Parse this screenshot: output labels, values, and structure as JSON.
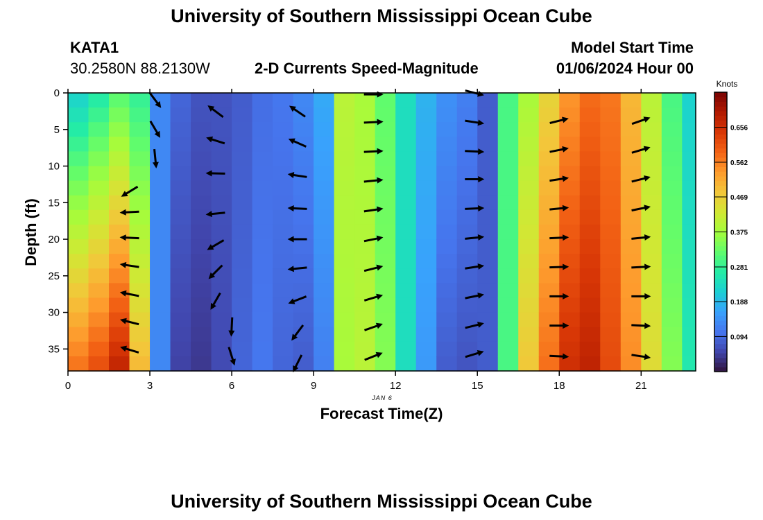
{
  "header": {
    "title": "University of Southern Mississippi Ocean Cube",
    "station": "KATA1",
    "coords": "30.2580N  88.2130W",
    "subtitle": "2-D Currents Speed-Magnitude",
    "model_label": "Model Start Time",
    "model_time": "01/06/2024 Hour 00"
  },
  "footer": {
    "title": "University of Southern Mississippi Ocean Cube"
  },
  "colorbar": {
    "unit": "Knots",
    "ticks": [
      "0.656",
      "0.562",
      "0.469",
      "0.375",
      "0.281",
      "0.188",
      "0.094"
    ],
    "tick_values": [
      0.656,
      0.562,
      0.469,
      0.375,
      0.281,
      0.188,
      0.094
    ],
    "range": [
      0.0,
      0.75
    ],
    "colormap": [
      "#30123b",
      "#4145ab",
      "#4675ed",
      "#39a2fc",
      "#1bcfd4",
      "#24eca6",
      "#61fc6c",
      "#a4fc3b",
      "#d1e834",
      "#f3c63a",
      "#fe9b2d",
      "#f36315",
      "#d93806",
      "#b11901",
      "#7a0403"
    ]
  },
  "chart_data": {
    "type": "heatmap",
    "title": "2-D Currents Speed-Magnitude",
    "xlabel": "Forecast Time(Z)",
    "ylabel": "Depth (ft)",
    "date_label": "JAN 6",
    "x_ticks": [
      0,
      3,
      6,
      9,
      12,
      15,
      18,
      21
    ],
    "y_ticks": [
      0,
      5,
      10,
      15,
      20,
      25,
      30,
      35
    ],
    "xlim": [
      0,
      23
    ],
    "ylim": [
      0,
      38
    ],
    "time_steps": [
      0,
      0.75,
      1.5,
      2.25,
      3,
      3.75,
      4.5,
      5.25,
      6,
      6.75,
      7.5,
      8.25,
      9,
      9.75,
      10.5,
      11.25,
      12,
      12.75,
      13.5,
      14.25,
      15,
      15.75,
      16.5,
      17.25,
      18,
      18.75,
      19.5,
      20.25,
      21,
      21.75,
      22.5
    ],
    "surface_speed": [
      0.22,
      0.26,
      0.31,
      0.28,
      0.13,
      0.09,
      0.07,
      0.07,
      0.08,
      0.1,
      0.11,
      0.13,
      0.17,
      0.4,
      0.38,
      0.32,
      0.24,
      0.18,
      0.14,
      0.12,
      0.08,
      0.3,
      0.38,
      0.46,
      0.54,
      0.58,
      0.57,
      0.5,
      0.4,
      0.3,
      0.22
    ],
    "bottom_speed": [
      0.58,
      0.62,
      0.68,
      0.5,
      0.13,
      0.05,
      0.04,
      0.06,
      0.09,
      0.11,
      0.09,
      0.08,
      0.12,
      0.38,
      0.4,
      0.35,
      0.24,
      0.15,
      0.08,
      0.07,
      0.08,
      0.3,
      0.48,
      0.58,
      0.66,
      0.68,
      0.62,
      0.55,
      0.45,
      0.35,
      0.26
    ],
    "vectors": [
      {
        "time": 2.25,
        "depth": 13.5,
        "u": -0.9,
        "v": -0.55
      },
      {
        "time": 2.25,
        "depth": 16.3,
        "u": -1,
        "v": -0.05
      },
      {
        "time": 2.25,
        "depth": 19.8,
        "u": -1,
        "v": 0.05
      },
      {
        "time": 2.25,
        "depth": 23.6,
        "u": -1,
        "v": 0.15
      },
      {
        "time": 2.25,
        "depth": 27.5,
        "u": -1,
        "v": 0.2
      },
      {
        "time": 2.25,
        "depth": 31.3,
        "u": -1,
        "v": 0.25
      },
      {
        "time": 2.25,
        "depth": 35.1,
        "u": -1,
        "v": 0.3
      },
      {
        "time": 3.2,
        "depth": 1.0,
        "u": 0.6,
        "v": -0.8
      },
      {
        "time": 3.2,
        "depth": 5.0,
        "u": 0.5,
        "v": -0.85
      },
      {
        "time": 3.2,
        "depth": 9.0,
        "u": 0.1,
        "v": -1
      },
      {
        "time": 5.4,
        "depth": 2.5,
        "u": -0.8,
        "v": 0.6
      },
      {
        "time": 5.4,
        "depth": 6.5,
        "u": -0.95,
        "v": 0.3
      },
      {
        "time": 5.4,
        "depth": 11.0,
        "u": -1,
        "v": 0.02
      },
      {
        "time": 5.4,
        "depth": 16.5,
        "u": -1,
        "v": -0.1
      },
      {
        "time": 5.4,
        "depth": 20.8,
        "u": -0.85,
        "v": -0.5
      },
      {
        "time": 5.4,
        "depth": 24.5,
        "u": -0.7,
        "v": -0.7
      },
      {
        "time": 5.4,
        "depth": 28.5,
        "u": -0.5,
        "v": -0.87
      },
      {
        "time": 6.0,
        "depth": 32.0,
        "u": -0.05,
        "v": -1
      },
      {
        "time": 6.0,
        "depth": 36.0,
        "u": 0.3,
        "v": -0.95
      },
      {
        "time": 8.4,
        "depth": 2.5,
        "u": -0.8,
        "v": 0.55
      },
      {
        "time": 8.4,
        "depth": 6.8,
        "u": -0.9,
        "v": 0.4
      },
      {
        "time": 8.4,
        "depth": 11.3,
        "u": -1,
        "v": 0.15
      },
      {
        "time": 8.4,
        "depth": 15.8,
        "u": -1,
        "v": 0.05
      },
      {
        "time": 8.4,
        "depth": 20.0,
        "u": -1,
        "v": 0.0
      },
      {
        "time": 8.4,
        "depth": 24.0,
        "u": -1,
        "v": -0.1
      },
      {
        "time": 8.4,
        "depth": 28.3,
        "u": -0.9,
        "v": -0.35
      },
      {
        "time": 8.4,
        "depth": 32.8,
        "u": -0.6,
        "v": -0.8
      },
      {
        "time": 8.4,
        "depth": 37.0,
        "u": -0.45,
        "v": -0.9
      },
      {
        "time": 11.2,
        "depth": 0.2,
        "u": 1,
        "v": 0
      },
      {
        "time": 11.2,
        "depth": 4.0,
        "u": 1,
        "v": 0.05
      },
      {
        "time": 11.2,
        "depth": 8.0,
        "u": 1,
        "v": 0.05
      },
      {
        "time": 11.2,
        "depth": 12.0,
        "u": 1,
        "v": 0.1
      },
      {
        "time": 11.2,
        "depth": 16.0,
        "u": 1,
        "v": 0.15
      },
      {
        "time": 11.2,
        "depth": 20.0,
        "u": 1,
        "v": 0.2
      },
      {
        "time": 11.2,
        "depth": 24.0,
        "u": 1,
        "v": 0.25
      },
      {
        "time": 11.2,
        "depth": 28.0,
        "u": 1,
        "v": 0.3
      },
      {
        "time": 11.2,
        "depth": 32.0,
        "u": 1,
        "v": 0.35
      },
      {
        "time": 11.2,
        "depth": 36.0,
        "u": 1,
        "v": 0.4
      },
      {
        "time": 14.9,
        "depth": 0.0,
        "u": 1,
        "v": -0.25
      },
      {
        "time": 14.9,
        "depth": 4.0,
        "u": 1,
        "v": -0.15
      },
      {
        "time": 14.9,
        "depth": 8.0,
        "u": 1,
        "v": -0.05
      },
      {
        "time": 14.9,
        "depth": 11.8,
        "u": 1,
        "v": 0
      },
      {
        "time": 14.9,
        "depth": 15.8,
        "u": 1,
        "v": 0.05
      },
      {
        "time": 14.9,
        "depth": 19.8,
        "u": 1,
        "v": 0.1
      },
      {
        "time": 14.9,
        "depth": 23.8,
        "u": 1,
        "v": 0.15
      },
      {
        "time": 14.9,
        "depth": 27.8,
        "u": 1,
        "v": 0.2
      },
      {
        "time": 14.9,
        "depth": 31.8,
        "u": 1,
        "v": 0.25
      },
      {
        "time": 14.9,
        "depth": 35.7,
        "u": 1,
        "v": 0.3
      },
      {
        "time": 18.0,
        "depth": 3.8,
        "u": 1,
        "v": 0.25
      },
      {
        "time": 18.0,
        "depth": 7.8,
        "u": 1,
        "v": 0.2
      },
      {
        "time": 18.0,
        "depth": 11.8,
        "u": 1,
        "v": 0.15
      },
      {
        "time": 18.0,
        "depth": 15.8,
        "u": 1,
        "v": 0.1
      },
      {
        "time": 18.0,
        "depth": 19.8,
        "u": 1,
        "v": 0.05
      },
      {
        "time": 18.0,
        "depth": 23.8,
        "u": 1,
        "v": 0.03
      },
      {
        "time": 18.0,
        "depth": 27.8,
        "u": 1,
        "v": 0
      },
      {
        "time": 18.0,
        "depth": 31.8,
        "u": 1,
        "v": 0
      },
      {
        "time": 18.0,
        "depth": 36.0,
        "u": 1,
        "v": -0.05
      },
      {
        "time": 21.0,
        "depth": 3.8,
        "u": 1,
        "v": 0.35
      },
      {
        "time": 21.0,
        "depth": 7.8,
        "u": 1,
        "v": 0.3
      },
      {
        "time": 21.0,
        "depth": 11.8,
        "u": 1,
        "v": 0.25
      },
      {
        "time": 21.0,
        "depth": 15.8,
        "u": 1,
        "v": 0.2
      },
      {
        "time": 21.0,
        "depth": 19.8,
        "u": 1,
        "v": 0.1
      },
      {
        "time": 21.0,
        "depth": 23.8,
        "u": 1,
        "v": 0.05
      },
      {
        "time": 21.0,
        "depth": 27.8,
        "u": 1,
        "v": 0
      },
      {
        "time": 21.0,
        "depth": 31.8,
        "u": 1,
        "v": -0.05
      },
      {
        "time": 21.0,
        "depth": 36.0,
        "u": 1,
        "v": -0.15
      }
    ]
  }
}
